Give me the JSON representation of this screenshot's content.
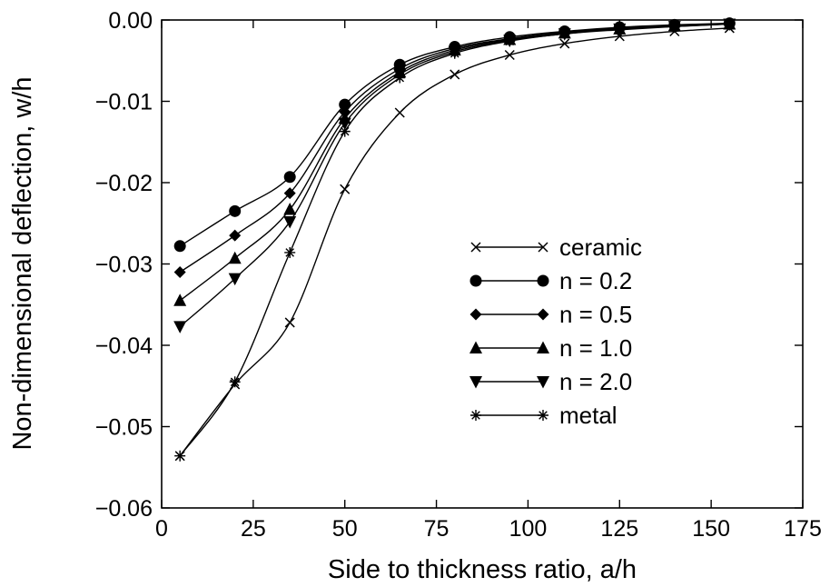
{
  "chart_data": {
    "type": "line",
    "title": "",
    "xlabel": "Side to thickness ratio, a/h",
    "ylabel": "Non-dimensional deflection, w/h",
    "xlim": [
      0,
      175
    ],
    "ylim": [
      -0.06,
      0.0
    ],
    "x_ticks": [
      0,
      25,
      50,
      75,
      100,
      125,
      150,
      175
    ],
    "y_ticks": [
      0.0,
      -0.01,
      -0.02,
      -0.03,
      -0.04,
      -0.05,
      -0.06
    ],
    "x_tick_labels": [
      "0",
      "25",
      "50",
      "75",
      "100",
      "125",
      "150",
      "175"
    ],
    "y_tick_labels": [
      "0.00",
      "−0.01",
      "−0.02",
      "−0.03",
      "−0.04",
      "−0.05",
      "−0.06"
    ],
    "grid": false,
    "legend_position": "center-right",
    "x": [
      5,
      20,
      35,
      50,
      65,
      80,
      95,
      110,
      125,
      140,
      155
    ],
    "series": [
      {
        "name": "ceramic",
        "marker": "cross",
        "values": [
          -0.0536,
          -0.0448,
          -0.0372,
          -0.0208,
          -0.0114,
          -0.0067,
          -0.0043,
          -0.0029,
          -0.002,
          -0.0014,
          -0.001
        ]
      },
      {
        "name": "n = 0.2",
        "marker": "circle",
        "values": [
          -0.0278,
          -0.0235,
          -0.0193,
          -0.0104,
          -0.0055,
          -0.0033,
          -0.0021,
          -0.0014,
          -0.0009,
          -0.0006,
          -0.0004
        ]
      },
      {
        "name": "n = 0.5",
        "marker": "diamond",
        "values": [
          -0.031,
          -0.0265,
          -0.0213,
          -0.0113,
          -0.006,
          -0.0035,
          -0.0023,
          -0.0015,
          -0.001,
          -0.0007,
          -0.0005
        ]
      },
      {
        "name": "n = 1.0",
        "marker": "triangle-up",
        "values": [
          -0.0345,
          -0.0293,
          -0.0233,
          -0.0121,
          -0.0064,
          -0.0037,
          -0.0024,
          -0.0016,
          -0.0011,
          -0.0007,
          -0.0005
        ]
      },
      {
        "name": "n = 2.0",
        "marker": "triangle-down",
        "values": [
          -0.0377,
          -0.0318,
          -0.0248,
          -0.0127,
          -0.0067,
          -0.0039,
          -0.0025,
          -0.0017,
          -0.0011,
          -0.0008,
          -0.0005
        ]
      },
      {
        "name": "metal",
        "marker": "asterisk",
        "values": [
          -0.0536,
          -0.0445,
          -0.0286,
          -0.0137,
          -0.0071,
          -0.0041,
          -0.0026,
          -0.0017,
          -0.0012,
          -0.0008,
          -0.0005
        ]
      }
    ]
  }
}
